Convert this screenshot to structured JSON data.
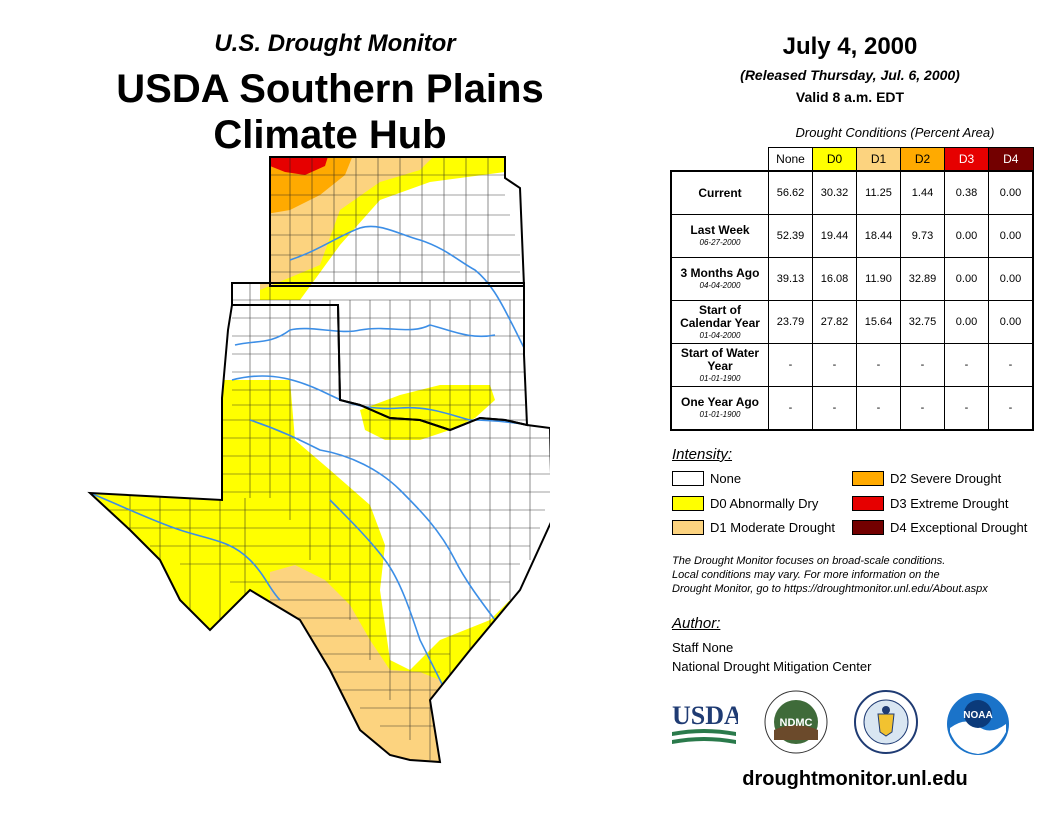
{
  "header": {
    "subtitle": "U.S. Drought Monitor",
    "title_line1": "USDA Southern Plains",
    "title_line2": "Climate Hub"
  },
  "date_block": {
    "date": "July 4, 2000",
    "released": "(Released Thursday, Jul. 6, 2000)",
    "valid": "Valid 8 a.m. EDT"
  },
  "conditions_table": {
    "caption": "Drought Conditions (Percent Area)",
    "columns": [
      {
        "label": "None",
        "color": "#ffffff",
        "text_color": "#000000"
      },
      {
        "label": "D0",
        "color": "#ffff00",
        "text_color": "#000000"
      },
      {
        "label": "D1",
        "color": "#fcd37f",
        "text_color": "#000000"
      },
      {
        "label": "D2",
        "color": "#ffaa00",
        "text_color": "#000000"
      },
      {
        "label": "D3",
        "color": "#e60000",
        "text_color": "#ffffff"
      },
      {
        "label": "D4",
        "color": "#730000",
        "text_color": "#ffffff"
      }
    ],
    "rows": [
      {
        "label": "Current",
        "date": "",
        "values": [
          "56.62",
          "30.32",
          "11.25",
          "1.44",
          "0.38",
          "0.00"
        ]
      },
      {
        "label": "Last Week",
        "date": "06-27-2000",
        "values": [
          "52.39",
          "19.44",
          "18.44",
          "9.73",
          "0.00",
          "0.00"
        ]
      },
      {
        "label": "3 Months Ago",
        "date": "04-04-2000",
        "values": [
          "39.13",
          "16.08",
          "11.90",
          "32.89",
          "0.00",
          "0.00"
        ]
      },
      {
        "label": "Start of Calendar Year",
        "date": "01-04-2000",
        "values": [
          "23.79",
          "27.82",
          "15.64",
          "32.75",
          "0.00",
          "0.00"
        ]
      },
      {
        "label": "Start of Water Year",
        "date": "01-01-1900",
        "values": [
          "-",
          "-",
          "-",
          "-",
          "-",
          "-"
        ]
      },
      {
        "label": "One Year Ago",
        "date": "01-01-1900",
        "values": [
          "-",
          "-",
          "-",
          "-",
          "-",
          "-"
        ]
      }
    ]
  },
  "legend": {
    "title": "Intensity:",
    "items": [
      {
        "label": "None",
        "color": "#ffffff"
      },
      {
        "label": "D0 Abnormally Dry",
        "color": "#ffff00"
      },
      {
        "label": "D1 Moderate Drought",
        "color": "#fcd37f"
      },
      {
        "label": "D2 Severe Drought",
        "color": "#ffaa00"
      },
      {
        "label": "D3 Extreme Drought",
        "color": "#e60000"
      },
      {
        "label": "D4 Exceptional Drought",
        "color": "#730000"
      }
    ]
  },
  "note": {
    "line1": "The Drought Monitor focuses on broad-scale conditions.",
    "line2": "Local conditions may vary. For more information on the",
    "line3": "Drought Monitor, go to https://droughtmonitor.unl.edu/About.aspx"
  },
  "author": {
    "title": "Author:",
    "name": "Staff None",
    "org": "National Drought Mitigation Center"
  },
  "logos": {
    "usda": "USDA",
    "ndmc": "NDMC",
    "noaa": "NOAA"
  },
  "map": {
    "regions": [
      "Kansas",
      "Oklahoma",
      "Texas"
    ],
    "river_color": "#3c8ee6"
  },
  "footer": {
    "website": "droughtmonitor.unl.edu"
  }
}
